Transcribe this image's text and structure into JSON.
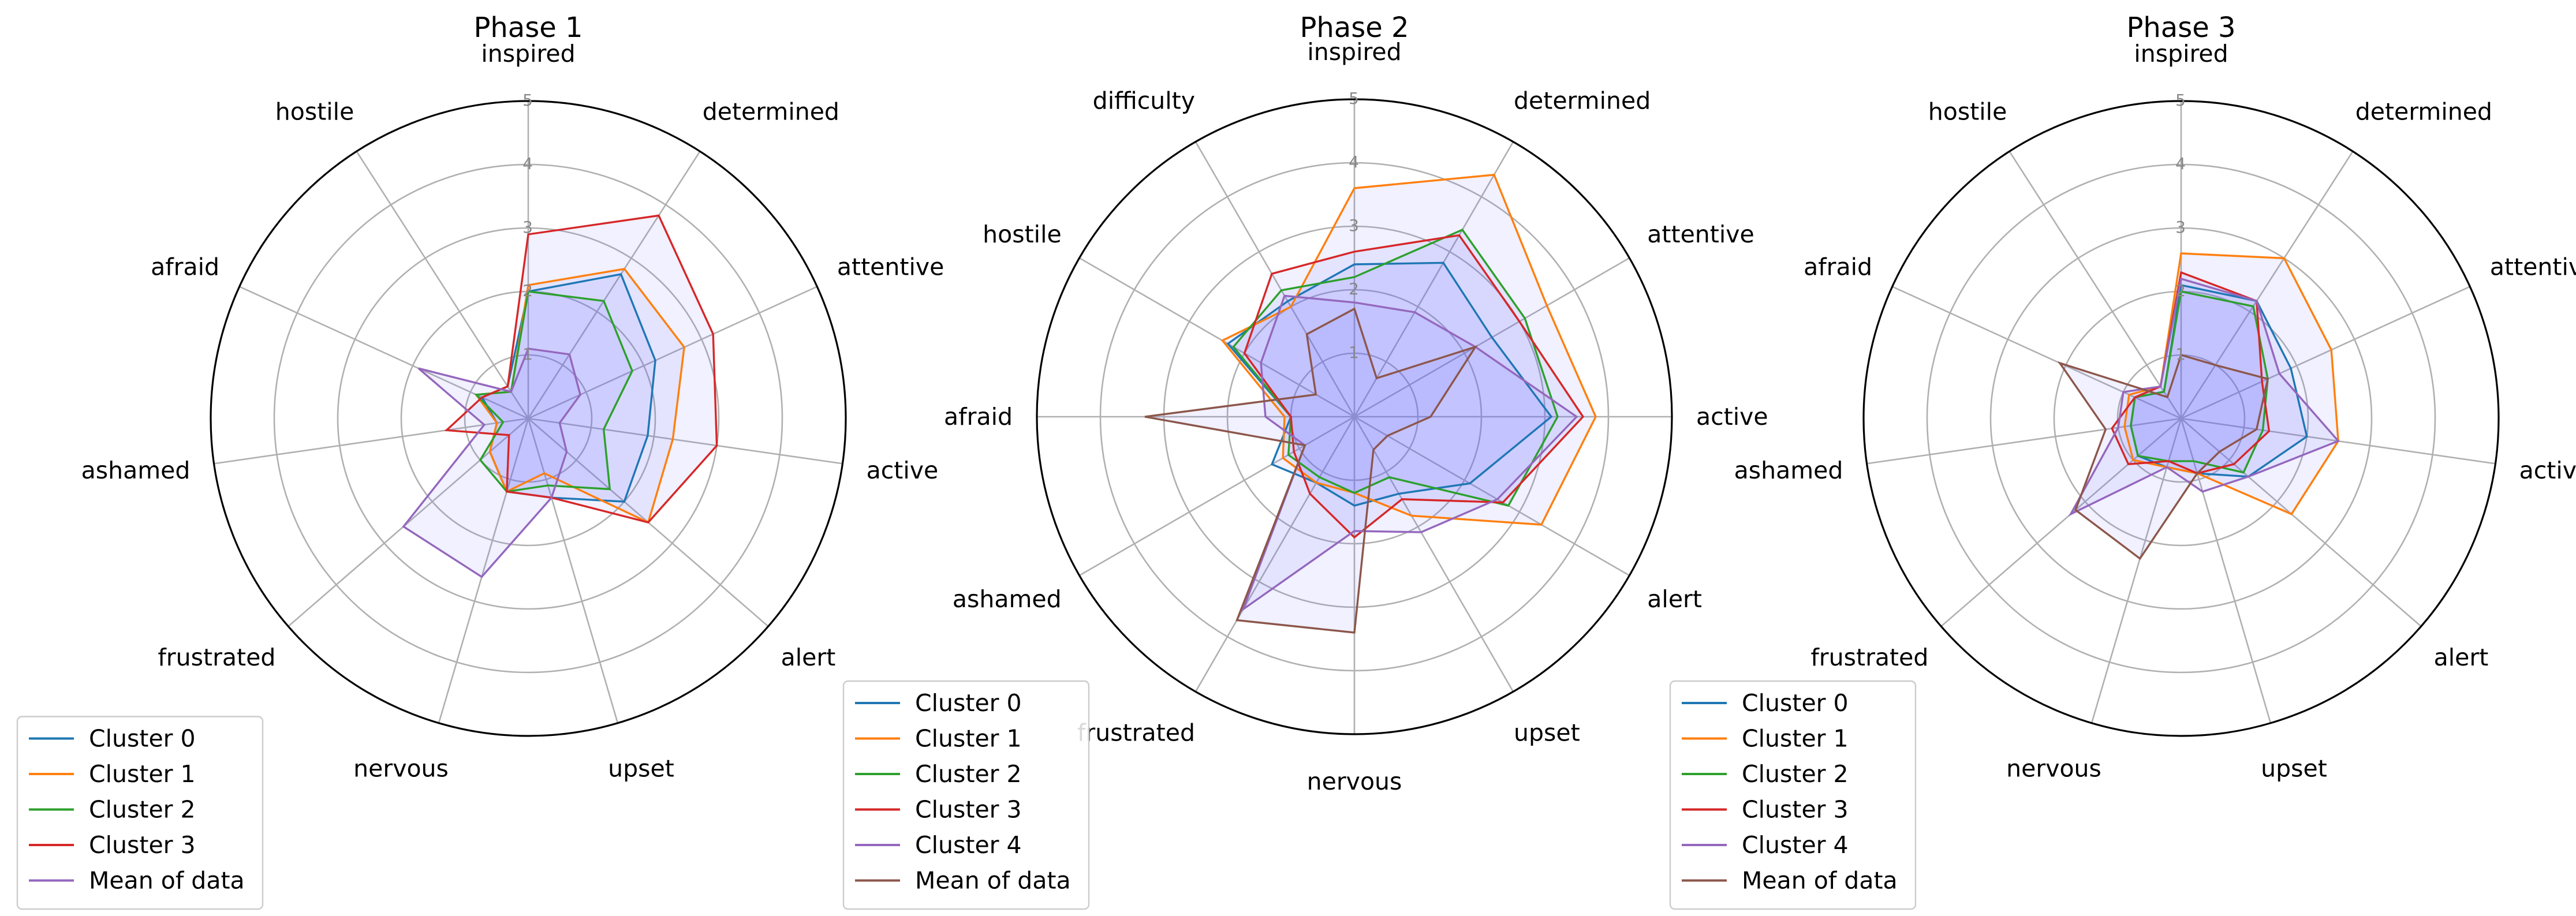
{
  "chart_data": [
    {
      "type": "radar",
      "title": "Phase 1",
      "axes": [
        "inspired",
        "determined",
        "attentive",
        "active",
        "alert",
        "upset",
        "nervous",
        "frustrated",
        "ashamed",
        "afraid",
        "hostile"
      ],
      "rlim": [
        0,
        5
      ],
      "rticks": [
        "1",
        "2",
        "3",
        "4",
        "5"
      ],
      "grid": true,
      "legend_position": "lower-left",
      "series": [
        {
          "name": "Cluster 0",
          "color": "#1f77b4",
          "values": [
            2.0,
            2.7,
            2.2,
            1.9,
            2.0,
            1.3,
            1.2,
            0.8,
            0.5,
            0.8,
            0.6
          ]
        },
        {
          "name": "Cluster 1",
          "color": "#ff7f0e",
          "values": [
            2.1,
            2.8,
            2.7,
            2.3,
            2.5,
            0.9,
            1.2,
            0.8,
            0.5,
            0.9,
            0.5
          ]
        },
        {
          "name": "Cluster 2",
          "color": "#2ca02c",
          "values": [
            2.0,
            2.2,
            1.8,
            1.2,
            1.7,
            1.1,
            1.2,
            1.0,
            0.4,
            0.9,
            0.5
          ]
        },
        {
          "name": "Cluster 3",
          "color": "#d62728",
          "values": [
            2.9,
            3.8,
            3.2,
            3.0,
            2.5,
            1.3,
            1.2,
            0.4,
            1.3,
            0.8,
            0.6
          ]
        },
        {
          "name": "Mean of data",
          "color": "#9467bd",
          "values": [
            1.1,
            1.2,
            0.9,
            0.5,
            0.8,
            1.3,
            2.6,
            2.6,
            0.7,
            1.9,
            0.5
          ]
        }
      ]
    },
    {
      "type": "radar",
      "title": "Phase 2",
      "axes": [
        "inspired",
        "determined",
        "attentive",
        "active",
        "alert",
        "upset",
        "nervous",
        "frustrated",
        "ashamed",
        "afraid",
        "hostile",
        "difficulty"
      ],
      "rlim": [
        0,
        5
      ],
      "rticks": [
        "1",
        "2",
        "3",
        "4",
        "5"
      ],
      "grid": true,
      "legend_position": "lower-left",
      "series": [
        {
          "name": "Cluster 0",
          "color": "#1f77b4",
          "values": [
            2.4,
            2.8,
            2.5,
            3.1,
            2.1,
            1.4,
            1.4,
            1.2,
            1.5,
            1.0,
            2.3,
            2.1
          ]
        },
        {
          "name": "Cluster 1",
          "color": "#ff7f0e",
          "values": [
            3.6,
            4.4,
            3.5,
            3.8,
            3.4,
            1.8,
            1.2,
            1.2,
            1.3,
            1.1,
            2.4,
            2.0
          ]
        },
        {
          "name": "Cluster 2",
          "color": "#2ca02c",
          "values": [
            2.2,
            3.4,
            3.1,
            3.2,
            2.8,
            1.1,
            1.2,
            1.1,
            1.2,
            1.0,
            2.2,
            2.3
          ]
        },
        {
          "name": "Cluster 3",
          "color": "#d62728",
          "values": [
            2.6,
            3.3,
            3.0,
            3.6,
            2.7,
            1.5,
            1.9,
            1.4,
            1.1,
            1.0,
            2.0,
            2.6
          ]
        },
        {
          "name": "Cluster 4",
          "color": "#9467bd",
          "values": [
            1.8,
            1.9,
            2.2,
            3.5,
            2.6,
            2.1,
            1.8,
            3.5,
            0.9,
            1.4,
            1.7,
            2.2
          ]
        },
        {
          "name": "Mean of data",
          "color": "#8c564b",
          "values": [
            1.7,
            0.7,
            2.2,
            1.2,
            0.6,
            0.6,
            3.4,
            3.7,
            0.9,
            3.3,
            0.7,
            1.5
          ]
        }
      ]
    },
    {
      "type": "radar",
      "title": "Phase 3",
      "axes": [
        "inspired",
        "determined",
        "attentive",
        "active",
        "alert",
        "upset",
        "nervous",
        "frustrated",
        "ashamed",
        "afraid",
        "hostile"
      ],
      "rlim": [
        0,
        5
      ],
      "rticks": [
        "1",
        "2",
        "3",
        "4",
        "5"
      ],
      "grid": true,
      "legend_position": "lower-left",
      "series": [
        {
          "name": "Cluster 0",
          "color": "#1f77b4",
          "values": [
            2.1,
            2.2,
            1.9,
            2.0,
            1.4,
            0.9,
            0.8,
            0.9,
            0.8,
            0.8,
            0.5
          ]
        },
        {
          "name": "Cluster 1",
          "color": "#ff7f0e",
          "values": [
            2.6,
            3.0,
            2.6,
            2.5,
            2.3,
            0.9,
            0.8,
            1.0,
            0.9,
            0.9,
            0.6
          ]
        },
        {
          "name": "Cluster 2",
          "color": "#2ca02c",
          "values": [
            2.0,
            2.1,
            1.5,
            1.3,
            1.3,
            0.7,
            0.7,
            0.9,
            0.8,
            0.8,
            0.5
          ]
        },
        {
          "name": "Cluster 3",
          "color": "#d62728",
          "values": [
            2.3,
            2.2,
            1.4,
            1.4,
            1.1,
            0.9,
            0.7,
            1.1,
            1.1,
            0.8,
            0.6
          ]
        },
        {
          "name": "Cluster 4",
          "color": "#9467bd",
          "values": [
            2.2,
            2.2,
            1.7,
            2.5,
            1.4,
            1.2,
            0.8,
            2.3,
            1.0,
            1.0,
            0.6
          ]
        },
        {
          "name": "Mean of data",
          "color": "#8c564b",
          "values": [
            1.0,
            1.0,
            1.5,
            1.2,
            0.8,
            0.9,
            2.3,
            2.2,
            1.2,
            2.1,
            0.4
          ]
        }
      ]
    }
  ]
}
